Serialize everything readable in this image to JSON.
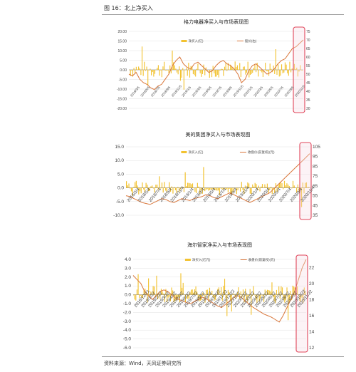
{
  "header": {
    "figure_title": "图 16：北上净买入"
  },
  "footer": {
    "source": "资料来源：Wind，天风证券研究所"
  },
  "colors": {
    "bar": "#f2c230",
    "line": "#d9763a",
    "highlight": "#e0455a",
    "highlight_fill": "#f7dde6",
    "grid": "#e2e2e2"
  },
  "chart_data": [
    {
      "type": "bar",
      "title": "格力电器净买入与市场表现图",
      "legend": [
        "净买入(亿)",
        "股价(右)"
      ],
      "y_left": {
        "ticks": [
          "20.00",
          "15.00",
          "10.00",
          "5.00",
          "0.00",
          "-5.00",
          "-10.00",
          "-15.00",
          "-20.00"
        ],
        "ylim": [
          -20,
          20
        ]
      },
      "y_right": {
        "ticks": [
          "75",
          "70",
          "65",
          "60",
          "55",
          "50",
          "45",
          "40",
          "35",
          "30"
        ],
        "ylim": [
          30,
          75
        ]
      },
      "x_ticks": [
        "2018/3/5",
        "2018/5/5",
        "2018/7/5",
        "2018/9/5",
        "2018/11/5",
        "2019/1/5",
        "2019/3/5",
        "2019/5/5",
        "2019/7/5",
        "2019/9/5",
        "2019/11/5",
        "2020/1/5",
        "2020/3/5",
        "2020/5/5",
        "2020/7/5",
        "2020/9/5",
        "2020/11/5"
      ],
      "bars_summary": "daily net buy in 亿, mostly within ±5, larger spikes to about ±15",
      "line_values": [
        50,
        49,
        51,
        47,
        45,
        44,
        42,
        41,
        43,
        44,
        47,
        50,
        55,
        58,
        60,
        56,
        54,
        53,
        56,
        57,
        55,
        53,
        51,
        52,
        55,
        57,
        58,
        56,
        55,
        53,
        50,
        45,
        47,
        52,
        55,
        56,
        54,
        52,
        50,
        51,
        53,
        56,
        58,
        59,
        62,
        65,
        66,
        68,
        70
      ],
      "highlight": "last segment (late 2020) circled"
    },
    {
      "type": "bar",
      "title": "美的集团净买入与市场表现图",
      "legend": [
        "净买入(亿)",
        "收盘价(前复权)(元)"
      ],
      "y_left": {
        "ticks": [
          "15.0",
          "10.0",
          "5.0",
          "0.0",
          "-5.0",
          "-10.0"
        ],
        "ylim": [
          -10,
          15
        ]
      },
      "y_right": {
        "ticks": [
          "105",
          "95",
          "85",
          "75",
          "65",
          "55",
          "45",
          "35"
        ],
        "ylim": [
          35,
          105
        ]
      },
      "x_ticks": [
        "2018/3/4",
        "2018/5/4",
        "2018/7/4",
        "2018/9/4",
        "2018/11/4",
        "2019/1/4",
        "2019/3/4",
        "2019/5/4",
        "2019/7/4",
        "2019/9/4",
        "2019/11/4",
        "2020/1/4",
        "2020/3/4",
        "2020/5/4",
        "2020/7/4",
        "2020/9/4",
        "2020/11/4"
      ],
      "bars_summary": "daily net buy in 亿, mostly within ±5",
      "line_values": [
        55,
        54,
        52,
        50,
        48,
        47,
        46,
        48,
        50,
        52,
        51,
        49,
        48,
        50,
        52,
        51,
        50,
        52,
        53,
        54,
        56,
        55,
        53,
        52,
        54,
        56,
        58,
        56,
        54,
        52,
        50,
        48,
        50,
        52,
        54,
        56,
        58,
        62,
        66,
        70,
        74,
        78,
        82,
        86,
        90,
        94,
        98
      ],
      "highlight": "last segment (late 2020) circled"
    },
    {
      "type": "bar",
      "title": "海尔智家净买入与市场表现图",
      "legend": [
        "净买入(亿元)",
        "收盘价(前复权)(元)"
      ],
      "y_left": {
        "ticks": [
          "4.0",
          "3.0",
          "2.0",
          "1.0",
          "0.0",
          "-1.0",
          "-2.0",
          "-3.0",
          "-4.0",
          "-5.0",
          "-6.0"
        ],
        "ylim": [
          -6,
          4
        ]
      },
      "y_right": {
        "ticks": [
          "22",
          "20",
          "18",
          "16",
          "14",
          "12"
        ],
        "ylim": [
          12,
          23
        ]
      },
      "x_ticks": [
        "2018/12/21",
        "2019/1/22",
        "2019/2/22",
        "2019/3/22",
        "2019/4/22",
        "2019/5/22",
        "2019/6/22",
        "2019/7/22",
        "2019/8/22",
        "2019/9/22",
        "2019/10/22",
        "2019/11/22",
        "2019/12/22",
        "2020/1/22",
        "2020/2/22",
        "2020/3/22",
        "2020/4/22",
        "2020/5/22",
        "2020/6/22",
        "2020/7/22",
        "2020/8/22",
        "2020/9/22",
        "2020/10/22",
        "2020/11/22"
      ],
      "bars_summary": "daily net buy in 亿元, mostly within ±2, spikes near ±4",
      "line_values": [
        21,
        20.5,
        20,
        19,
        18.5,
        18,
        18.5,
        19,
        19.2,
        19,
        18.6,
        18.2,
        18,
        17.8,
        17.6,
        17.5,
        17.8,
        18,
        18.3,
        18.1,
        17.8,
        17.5,
        17.2,
        17,
        17.4,
        17.8,
        18.2,
        18.5,
        18.3,
        17.9,
        17.5,
        17.1,
        16.8,
        16.5,
        16.2,
        16,
        15.8,
        15.5,
        15.2,
        16,
        17,
        18,
        19,
        20.5,
        22,
        23
      ],
      "highlight": "last segment (late 2020) circled"
    }
  ]
}
